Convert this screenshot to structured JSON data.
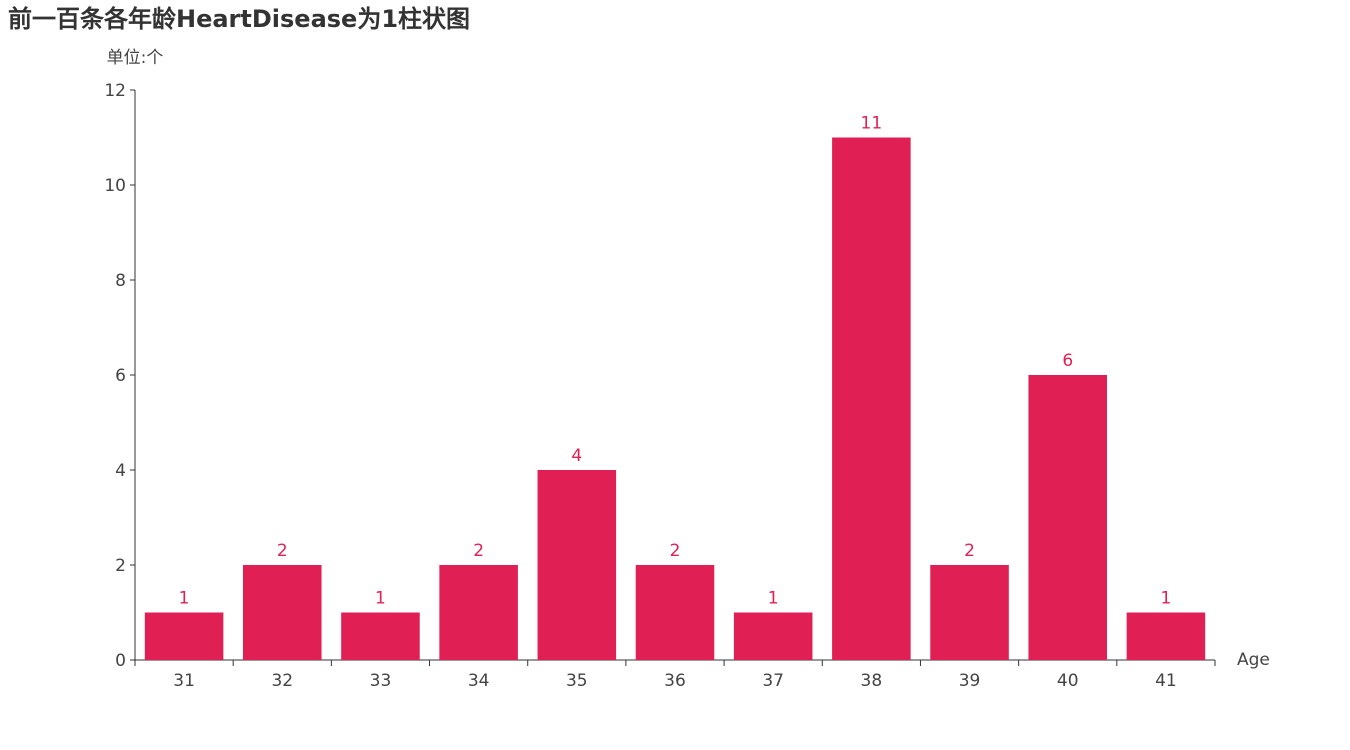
{
  "chart_data": {
    "type": "bar",
    "title": "前一百条各年龄HeartDisease为1柱状图",
    "ylabel": "单位:个",
    "xlabel": "Age",
    "categories": [
      "31",
      "32",
      "33",
      "34",
      "35",
      "36",
      "37",
      "38",
      "39",
      "40",
      "41"
    ],
    "values": [
      1,
      2,
      1,
      2,
      4,
      2,
      1,
      11,
      2,
      6,
      1
    ],
    "ylim": [
      0,
      12
    ],
    "yticks": [
      0,
      2,
      4,
      6,
      8,
      10,
      12
    ],
    "grid": false,
    "data_labels": true,
    "bar_color": "#e02054",
    "label_color": "#e02054",
    "axis_color": "#333333"
  }
}
